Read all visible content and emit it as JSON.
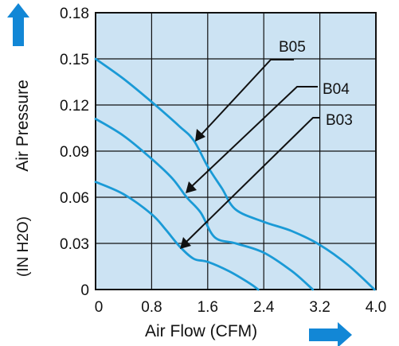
{
  "colors": {
    "plot_background": "#cce3f3",
    "curve": "#1a9ad6",
    "arrow": "#1287d6",
    "grid": "#111111"
  },
  "chart_data": {
    "type": "line",
    "xlabel": "Air Flow (CFM)",
    "ylabel": "Air Pressure",
    "ylabel_sub": "(IN H2O)",
    "xlim": [
      0,
      4.0
    ],
    "ylim": [
      0,
      0.18
    ],
    "x_ticks": [
      "0",
      "0.8",
      "1.6",
      "2.4",
      "3.2",
      "4.0"
    ],
    "y_ticks": [
      "0.18",
      "0.15",
      "0.12",
      "0.09",
      "0.06",
      "0.03",
      "0"
    ],
    "grid": true,
    "series": [
      {
        "name": "B05",
        "x": [
          0,
          0.4,
          0.8,
          1.2,
          1.4,
          1.6,
          1.8,
          2.0,
          2.4,
          2.8,
          3.2,
          3.6,
          3.98
        ],
        "y": [
          0.15,
          0.137,
          0.122,
          0.106,
          0.097,
          0.08,
          0.066,
          0.052,
          0.044,
          0.038,
          0.029,
          0.016,
          0.0
        ]
      },
      {
        "name": "B04",
        "x": [
          0,
          0.4,
          0.8,
          1.1,
          1.3,
          1.5,
          1.7,
          2.0,
          2.4,
          2.8,
          3.1
        ],
        "y": [
          0.111,
          0.1,
          0.085,
          0.072,
          0.06,
          0.05,
          0.034,
          0.03,
          0.024,
          0.012,
          0.0
        ]
      },
      {
        "name": "B03",
        "x": [
          0,
          0.4,
          0.8,
          1.0,
          1.2,
          1.4,
          1.6,
          1.9,
          2.2,
          2.32
        ],
        "y": [
          0.07,
          0.062,
          0.049,
          0.039,
          0.028,
          0.02,
          0.018,
          0.012,
          0.004,
          0.0
        ]
      }
    ]
  }
}
